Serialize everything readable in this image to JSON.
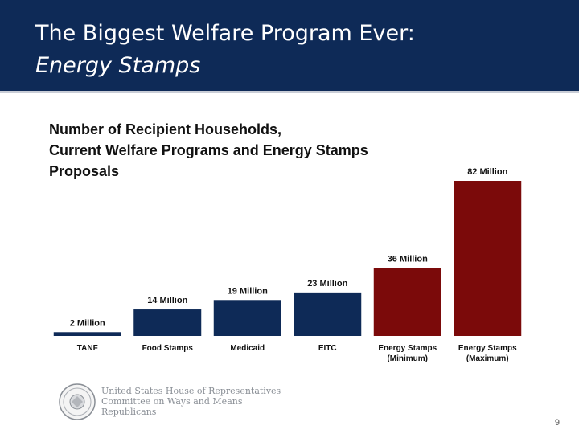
{
  "header": {
    "title_line1": "The Biggest Welfare Program Ever:",
    "title_line2": "Energy Stamps",
    "background_color": "#0e2a57"
  },
  "chart_data": {
    "type": "bar",
    "title": "Number of  Recipient Households,\nCurrent Welfare Programs and Energy Stamps\nProposals",
    "categories": [
      "TANF",
      "Food Stamps",
      "Medicaid",
      "EITC",
      "Energy Stamps\n(Minimum)",
      "Energy Stamps\n(Maximum)"
    ],
    "values": [
      2,
      14,
      19,
      23,
      36,
      82
    ],
    "value_labels": [
      "2 Million",
      "14 Million",
      "19 Million",
      "23 Million",
      "36 Million",
      "82 Million"
    ],
    "colors": [
      "#0e2a57",
      "#0e2a57",
      "#0e2a57",
      "#0e2a57",
      "#7b0a0a",
      "#7b0a0a"
    ],
    "units": "Million households",
    "xlabel": "",
    "ylabel": "",
    "ylim": [
      0,
      82
    ],
    "grid": false,
    "legend": "none"
  },
  "footer": {
    "org_line1": "United States House of Representatives",
    "org_line2": "Committee on Ways and Means",
    "org_line3": "Republicans",
    "seal_icon": "house-seal-icon"
  },
  "page_number": "9"
}
